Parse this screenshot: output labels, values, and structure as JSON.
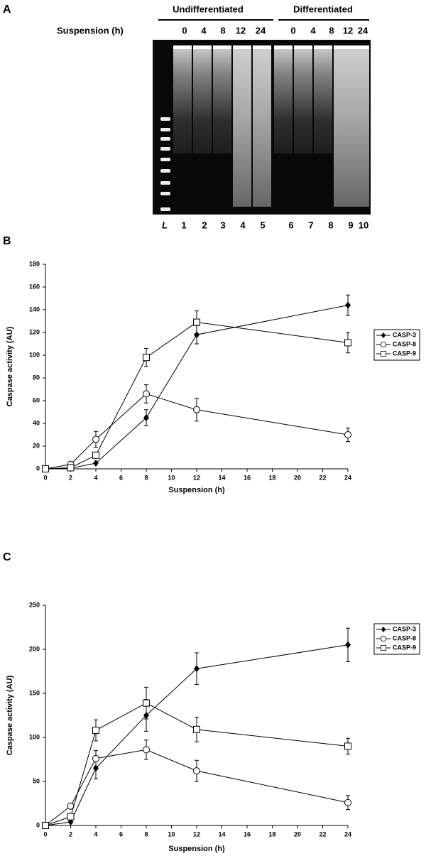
{
  "panel_a": {
    "panel": "A",
    "groups": [
      "Undifferentiated",
      "Differentiated"
    ],
    "row_label": "Suspension (h)",
    "hours": [
      [
        "0",
        "4",
        "8",
        "12",
        "24"
      ],
      [
        "0",
        "4",
        "8",
        "12",
        "24"
      ]
    ],
    "lanes": [
      "L",
      "1",
      "2",
      "3",
      "4",
      "5",
      "6",
      "7",
      "8",
      "9",
      "10"
    ]
  },
  "chart_data": [
    {
      "type": "line",
      "panel": "B",
      "xlabel": "Suspension (h)",
      "ylabel": "Caspase activity (AU)",
      "x": [
        0,
        2,
        4,
        8,
        12,
        24
      ],
      "xlim": [
        0,
        24
      ],
      "xticks": [
        0,
        2,
        4,
        6,
        8,
        10,
        12,
        14,
        16,
        18,
        20,
        22,
        24
      ],
      "ylim": [
        0,
        180
      ],
      "yticks": [
        0,
        20,
        40,
        60,
        80,
        100,
        120,
        140,
        160,
        180
      ],
      "legend": "right",
      "series": [
        {
          "name": "CASP-3",
          "color": "#000000",
          "marker": "diamond",
          "values": [
            0,
            0.5,
            5,
            45,
            118,
            144
          ],
          "errors": [
            0,
            0,
            0,
            7,
            8,
            9
          ]
        },
        {
          "name": "CASP-8",
          "color": "#000000",
          "marker": "circle",
          "values": [
            0,
            4,
            26,
            66,
            52,
            30
          ],
          "errors": [
            0,
            0,
            7,
            8,
            10,
            6
          ]
        },
        {
          "name": "CASP-9",
          "color": "#000000",
          "marker": "square",
          "values": [
            0,
            1,
            12,
            98,
            129,
            111
          ],
          "errors": [
            0,
            0,
            0,
            8,
            10,
            9
          ]
        }
      ]
    },
    {
      "type": "line",
      "panel": "C",
      "xlabel": "Suspension (h)",
      "ylabel": "Caspase activity (AU)",
      "x": [
        0,
        2,
        4,
        8,
        12,
        24
      ],
      "xlim": [
        0,
        24
      ],
      "xticks": [
        0,
        2,
        4,
        6,
        8,
        10,
        12,
        14,
        16,
        18,
        20,
        22,
        24
      ],
      "ylim": [
        0,
        250
      ],
      "yticks": [
        0,
        50,
        100,
        150,
        200,
        250
      ],
      "legend": "right",
      "series": [
        {
          "name": "CASP-3",
          "color": "#000000",
          "marker": "diamond",
          "values": [
            0,
            4,
            65,
            125,
            178,
            205
          ],
          "errors": [
            0,
            0,
            12,
            18,
            18,
            19
          ]
        },
        {
          "name": "CASP-8",
          "color": "#000000",
          "marker": "circle",
          "values": [
            0,
            22,
            76,
            86,
            62,
            26
          ],
          "errors": [
            0,
            0,
            9,
            11,
            12,
            8
          ]
        },
        {
          "name": "CASP-9",
          "color": "#000000",
          "marker": "square",
          "values": [
            0,
            10,
            108,
            139,
            109,
            90
          ],
          "errors": [
            0,
            0,
            12,
            18,
            14,
            9
          ]
        }
      ]
    }
  ]
}
